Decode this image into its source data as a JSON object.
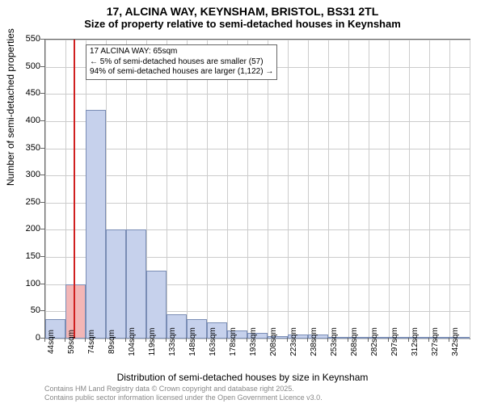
{
  "title": "17, ALCINA WAY, KEYNSHAM, BRISTOL, BS31 2TL",
  "subtitle": "Size of property relative to semi-detached houses in Keynsham",
  "y_axis": {
    "label": "Number of semi-detached properties",
    "min": 0,
    "max": 550,
    "tick_step": 50,
    "ticks": [
      0,
      50,
      100,
      150,
      200,
      250,
      300,
      350,
      400,
      450,
      500,
      550
    ]
  },
  "x_axis": {
    "label": "Distribution of semi-detached houses by size in Keynsham",
    "tick_labels": [
      "44sqm",
      "59sqm",
      "74sqm",
      "89sqm",
      "104sqm",
      "119sqm",
      "133sqm",
      "148sqm",
      "163sqm",
      "178sqm",
      "193sqm",
      "208sqm",
      "223sqm",
      "238sqm",
      "253sqm",
      "268sqm",
      "282sqm",
      "297sqm",
      "312sqm",
      "327sqm",
      "342sqm"
    ]
  },
  "bars": {
    "values": [
      35,
      100,
      420,
      200,
      200,
      125,
      45,
      35,
      30,
      15,
      10,
      5,
      8,
      8,
      2,
      2,
      2,
      2,
      0,
      0,
      2
    ],
    "fill_color": "#c6d1ec",
    "highlight_fill": "#f3b6b6",
    "border_color": "#7a8db5",
    "highlight_index": 1
  },
  "marker": {
    "position_index": 1.4,
    "color": "#d02020"
  },
  "annotation": {
    "lines": [
      "17 ALCINA WAY: 65sqm",
      "← 5% of semi-detached houses are smaller (57)",
      "94% of semi-detached houses are larger (1,122) →"
    ]
  },
  "attribution": {
    "line1": "Contains HM Land Registry data © Crown copyright and database right 2025.",
    "line2": "Contains public sector information licensed under the Open Government Licence v3.0."
  },
  "plot": {
    "grid_color": "#cccccc",
    "bg": "#ffffff"
  }
}
